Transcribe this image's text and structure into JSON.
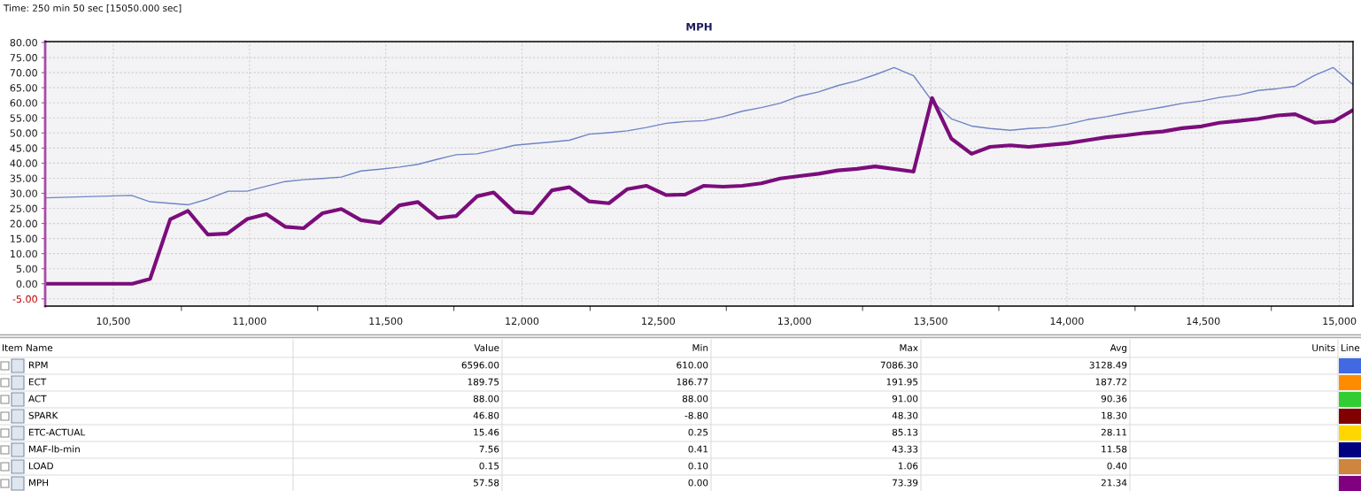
{
  "chart_data": [
    {
      "type": "line",
      "title": "MPH",
      "annotations": [
        "Time: 250 min 50 sec [15050.000 sec]"
      ],
      "series": [
        {
          "color": "#6f84c4",
          "x": [
            10250,
            10567,
            10635,
            10706,
            10776,
            10847,
            10922,
            10990,
            11063,
            11131,
            11198,
            11268,
            11337,
            11409,
            11479,
            11550,
            11618,
            11690,
            11759,
            11835,
            11902,
            11972,
            12042,
            12107,
            12174,
            12247,
            12319,
            12387,
            12456,
            12530,
            12599,
            12668,
            12738,
            12808,
            12878,
            12948,
            13018,
            13089,
            13159,
            13229,
            13296,
            13366,
            13437,
            13505,
            13576,
            13650,
            13718,
            13792,
            13860,
            13932,
            14003,
            14074,
            14145,
            14216,
            14287,
            14352,
            14423,
            14494,
            14560,
            14631,
            14702,
            14773,
            14838,
            14909,
            14977,
            15050
          ],
          "values": [
            28.5,
            29.3,
            27.2,
            26.7,
            26.2,
            28.1,
            30.7,
            30.7,
            32.4,
            33.9,
            34.5,
            34.9,
            35.4,
            37.4,
            38.0,
            38.7,
            39.6,
            41.3,
            42.8,
            43.1,
            44.4,
            45.9,
            46.5,
            47.0,
            47.6,
            49.6,
            50.1,
            50.7,
            51.8,
            53.2,
            53.8,
            54.1,
            55.4,
            57.2,
            58.4,
            59.9,
            62.2,
            63.6,
            65.7,
            67.3,
            69.3,
            71.7,
            69.0,
            60.6,
            54.7,
            52.3,
            51.5,
            50.9,
            51.5,
            51.8,
            52.9,
            54.4,
            55.4,
            56.6,
            57.6,
            58.6,
            59.8,
            60.6,
            61.8,
            62.6,
            64.1,
            64.7,
            65.5,
            69.1,
            71.7,
            66.0
          ]
        },
        {
          "color": "#7b0d7b",
          "x": [
            10250,
            10570,
            10635,
            10709,
            10774,
            10847,
            10918,
            10992,
            11062,
            11131,
            11198,
            11268,
            11337,
            11409,
            11479,
            11550,
            11618,
            11690,
            11759,
            11835,
            11896,
            11972,
            12039,
            12110,
            12174,
            12247,
            12319,
            12387,
            12456,
            12530,
            12599,
            12668,
            12738,
            12808,
            12878,
            12948,
            13018,
            13089,
            13159,
            13229,
            13296,
            13437,
            13505,
            13576,
            13650,
            13718,
            13792,
            13860,
            13932,
            14003,
            14074,
            14145,
            14216,
            14287,
            14352,
            14423,
            14494,
            14560,
            14631,
            14702,
            14773,
            14838,
            14909,
            14980,
            15050
          ],
          "values": [
            0,
            0,
            1.6,
            21.4,
            24.2,
            16.3,
            16.6,
            21.5,
            23.1,
            18.9,
            18.4,
            23.4,
            24.8,
            21.1,
            20.2,
            26.0,
            27.1,
            21.8,
            22.5,
            29.0,
            30.3,
            23.8,
            23.4,
            31.0,
            32.0,
            27.3,
            26.7,
            31.4,
            32.5,
            29.4,
            29.6,
            32.5,
            32.2,
            32.5,
            33.3,
            34.9,
            35.7,
            36.5,
            37.6,
            38.1,
            38.9,
            37.2,
            61.6,
            48.1,
            43.1,
            45.4,
            45.9,
            45.4,
            46.0,
            46.6,
            47.6,
            48.6,
            49.2,
            50.0,
            50.5,
            51.6,
            52.2,
            53.4,
            54.0,
            54.7,
            55.8,
            56.2,
            53.4,
            53.9,
            57.6
          ]
        }
      ],
      "xlim": [
        10250,
        15050
      ],
      "xticks": [
        {
          "value": 10500,
          "label": "10,500"
        },
        {
          "value": 10750,
          "label": null
        },
        {
          "value": 11000,
          "label": "11,000"
        },
        {
          "value": 11250,
          "label": null
        },
        {
          "value": 11500,
          "label": "11,500"
        },
        {
          "value": 11750,
          "label": null
        },
        {
          "value": 12000,
          "label": "12,000"
        },
        {
          "value": 12250,
          "label": null
        },
        {
          "value": 12500,
          "label": "12,500"
        },
        {
          "value": 12750,
          "label": null
        },
        {
          "value": 13000,
          "label": "13,000"
        },
        {
          "value": 13250,
          "label": null
        },
        {
          "value": 13500,
          "label": "13,500"
        },
        {
          "value": 13750,
          "label": null
        },
        {
          "value": 14000,
          "label": "14,000"
        },
        {
          "value": 14250,
          "label": null
        },
        {
          "value": 14500,
          "label": "14,500"
        },
        {
          "value": 14750,
          "label": null
        },
        {
          "value": 15000,
          "label": "15,000"
        }
      ],
      "ylim": [
        -7.4,
        80.3
      ],
      "yticks": [
        {
          "value": -5,
          "label": "-5.00"
        },
        {
          "value": 0,
          "label": "0.00"
        },
        {
          "value": 5,
          "label": "5.00"
        },
        {
          "value": 10,
          "label": "10.00"
        },
        {
          "value": 15,
          "label": "15.00"
        },
        {
          "value": 20,
          "label": "20.00"
        },
        {
          "value": 25,
          "label": "25.00"
        },
        {
          "value": 30,
          "label": "30.00"
        },
        {
          "value": 35,
          "label": "35.00"
        },
        {
          "value": 40,
          "label": "40.00"
        },
        {
          "value": 45,
          "label": "45.00"
        },
        {
          "value": 50,
          "label": "50.00"
        },
        {
          "value": 55,
          "label": "55.00"
        },
        {
          "value": 60,
          "label": "60.00"
        },
        {
          "value": 65,
          "label": "65.00"
        },
        {
          "value": 70,
          "label": "70.00"
        },
        {
          "value": 75,
          "label": "75.00"
        },
        {
          "value": 80,
          "label": "80.00"
        }
      ],
      "grid": true
    },
    {
      "type": "other",
      "annotations": [
        "Item Name",
        "Units",
        "Line"
      ],
      "categories": [
        "RPM",
        "ECT",
        "ACT",
        "SPARK",
        "ETC-ACTUAL",
        "MAF-lb-min",
        "LOAD",
        "MPH"
      ],
      "series": [
        {
          "name": "Value",
          "values": [
            6596.0,
            189.75,
            88.0,
            46.8,
            15.46,
            7.56,
            0.15,
            57.58
          ],
          "value_labels": [
            "6596.00",
            "189.75",
            "88.00",
            "46.80",
            "15.46",
            "7.56",
            "0.15",
            "57.58"
          ]
        },
        {
          "name": "Min",
          "values": [
            610.0,
            186.77,
            88.0,
            -8.8,
            0.25,
            0.41,
            0.1,
            0.0
          ],
          "value_labels": [
            "610.00",
            "186.77",
            "88.00",
            "-8.80",
            "0.25",
            "0.41",
            "0.10",
            "0.00"
          ]
        },
        {
          "name": "Max",
          "values": [
            7086.3,
            191.95,
            91.0,
            48.3,
            85.13,
            43.33,
            1.06,
            73.39
          ],
          "value_labels": [
            "7086.30",
            "191.95",
            "91.00",
            "48.30",
            "85.13",
            "43.33",
            "1.06",
            "73.39"
          ]
        },
        {
          "name": "Avg",
          "values": [
            3128.49,
            187.72,
            90.36,
            18.3,
            28.11,
            11.58,
            0.4,
            21.34
          ],
          "value_labels": [
            "3128.49",
            "187.72",
            "90.36",
            "18.30",
            "28.11",
            "11.58",
            "0.40",
            "21.34"
          ]
        }
      ],
      "colors": [
        "#4169e1",
        "#ff8c00",
        "#32cd32",
        "#800000",
        "#ffd700",
        "#000080",
        "#cd853f",
        "#800080"
      ]
    }
  ]
}
